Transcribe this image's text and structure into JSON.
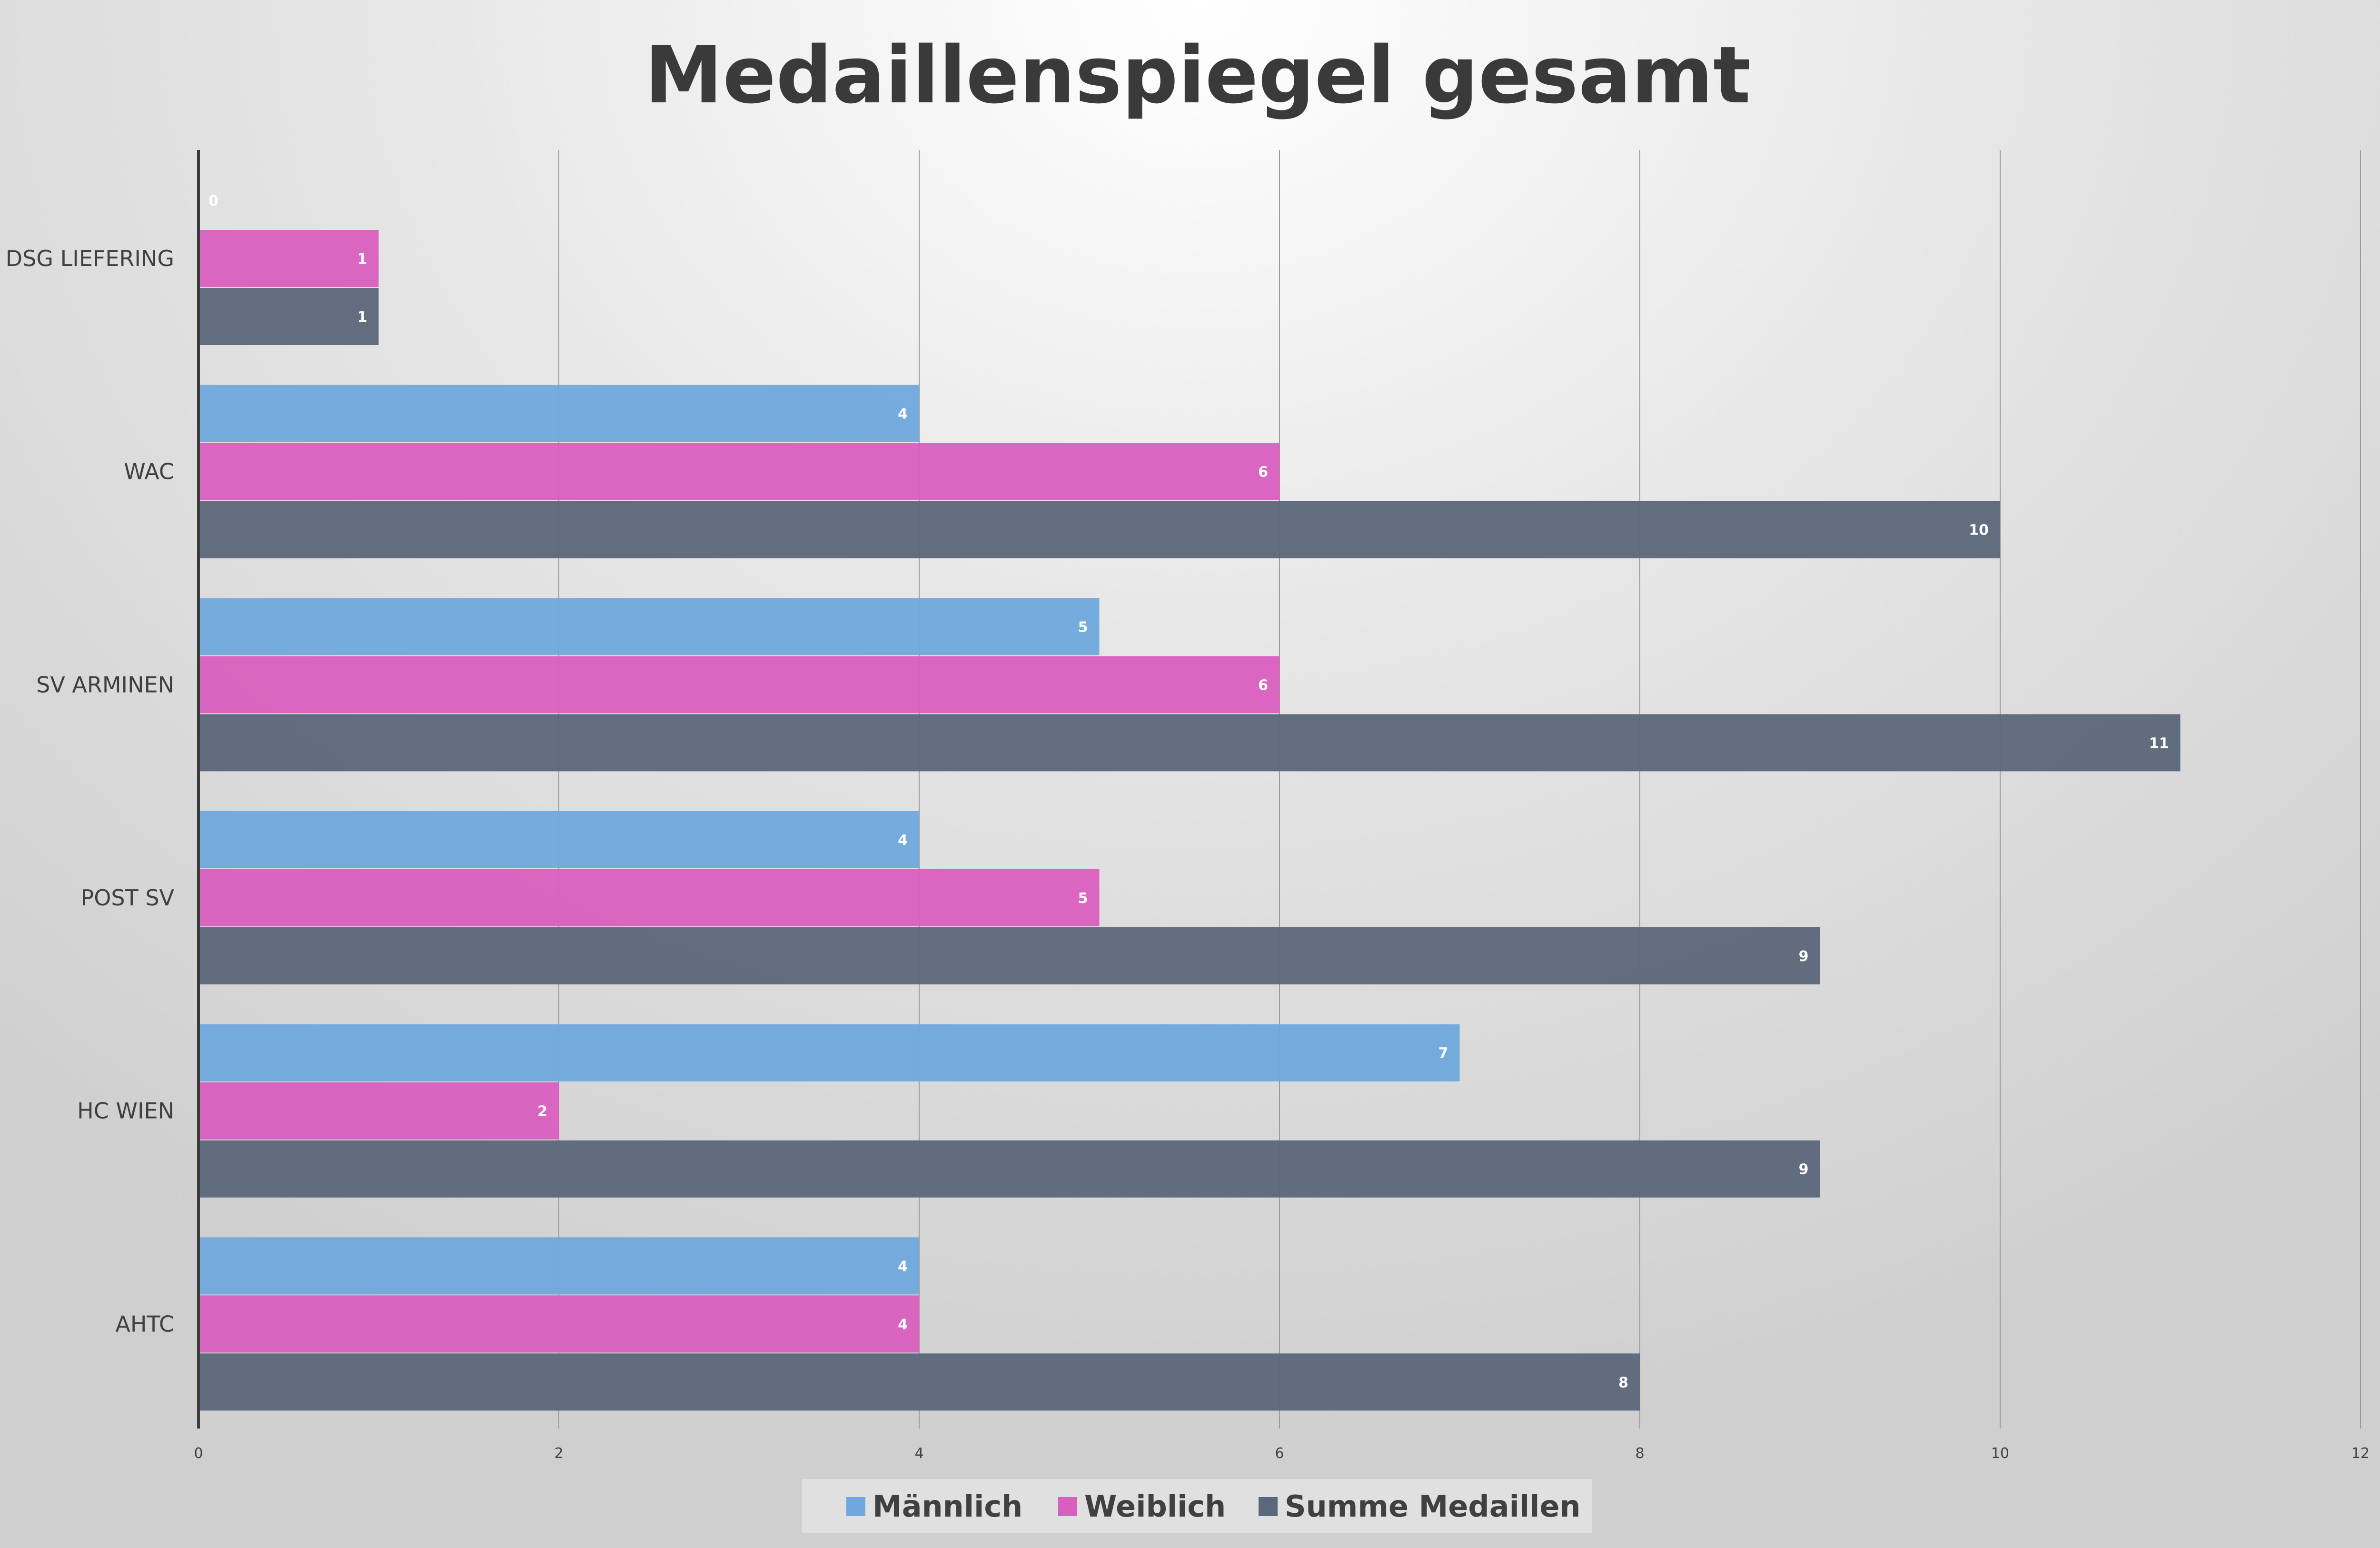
{
  "chart_data": {
    "type": "bar",
    "orientation": "horizontal",
    "title": "Medaillenspiegel gesamt",
    "xlabel": "",
    "ylabel": "",
    "categories": [
      "DSG LIEFERING",
      "WAC",
      "SV ARMINEN",
      "POST SV",
      "HC WIEN",
      "AHTC"
    ],
    "series": [
      {
        "name": "Männlich",
        "color": "#6fa8dc",
        "values": [
          0,
          4,
          5,
          4,
          7,
          4
        ]
      },
      {
        "name": "Weiblich",
        "color": "#d95fbf",
        "values": [
          1,
          6,
          6,
          5,
          2,
          4
        ]
      },
      {
        "name": "Summe Medaillen",
        "color": "#5b677a",
        "values": [
          1,
          10,
          11,
          9,
          9,
          8
        ]
      }
    ],
    "xlim": [
      0,
      12
    ],
    "xticks": [
      0,
      2,
      4,
      6,
      8,
      10,
      12
    ],
    "grid": "vertical",
    "data_labels": true,
    "legend": "bottom"
  }
}
